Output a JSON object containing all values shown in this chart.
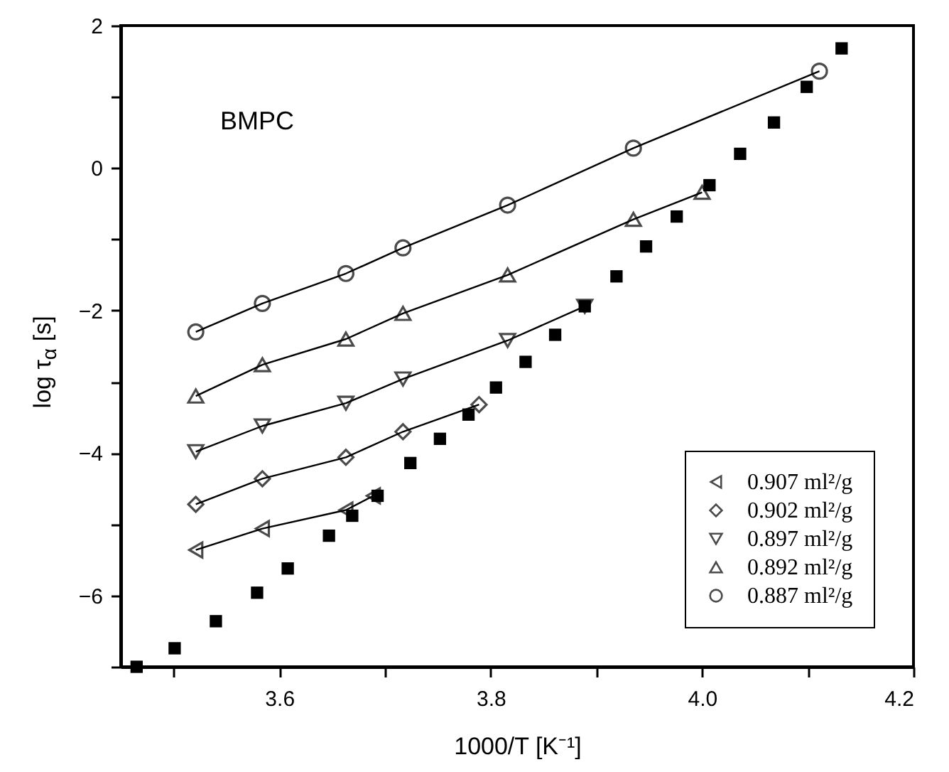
{
  "chart_data": {
    "type": "line",
    "xlabel": "1000/T  [K⁻¹]",
    "ylabel": "log τ$_{α}$  [s]",
    "annotations": [
      "BMPC"
    ],
    "xlim": [
      3.45,
      4.2
    ],
    "xticks": [
      {
        "value": 3.5,
        "label": null
      },
      3.6,
      {
        "value": 3.7,
        "label": null
      },
      3.8,
      {
        "value": 3.9,
        "label": null
      },
      {
        "value": 4,
        "label": "4.0"
      },
      {
        "value": 4.1,
        "label": null
      },
      4.2
    ],
    "ylim": [
      -7,
      2
    ],
    "yticks": [
      {
        "value": -7,
        "label": null
      },
      -6,
      {
        "value": -5,
        "label": null
      },
      -4,
      {
        "value": -3,
        "label": null
      },
      -2,
      {
        "value": -1,
        "label": null
      },
      0,
      {
        "value": 1,
        "label": null
      },
      2
    ],
    "grid": false,
    "legend": "bottom right",
    "series": [
      {
        "name": "0.907 ml²/g",
        "type": "line",
        "marker": "triangle-left",
        "color": "#000000",
        "x": [
          3.521,
          3.584,
          3.663,
          3.689
        ],
        "values": [
          -5.36,
          -5.06,
          -4.8,
          -4.6
        ]
      },
      {
        "name": "0.902 ml²/g",
        "type": "line",
        "marker": "diamond",
        "color": "#000000",
        "x": [
          3.521,
          3.584,
          3.663,
          3.717,
          3.789
        ],
        "values": [
          -4.72,
          -4.36,
          -4.06,
          -3.7,
          -3.32
        ]
      },
      {
        "name": "0.897 ml²/g",
        "type": "line",
        "marker": "triangle-down",
        "color": "#000000",
        "x": [
          3.521,
          3.584,
          3.663,
          3.717,
          3.816,
          3.889
        ],
        "values": [
          -3.98,
          -3.62,
          -3.3,
          -2.96,
          -2.42,
          -1.94
        ]
      },
      {
        "name": "0.892 ml²/g",
        "type": "line",
        "marker": "triangle",
        "color": "#000000",
        "x": [
          3.521,
          3.584,
          3.663,
          3.717,
          3.816,
          3.935,
          4.0
        ],
        "values": [
          -3.2,
          -2.76,
          -2.4,
          -2.04,
          -1.5,
          -0.72,
          -0.34
        ]
      },
      {
        "name": "0.887 ml²/g",
        "type": "line",
        "marker": "circle",
        "color": "#000000",
        "x": [
          3.521,
          3.584,
          3.663,
          3.717,
          3.816,
          3.935,
          4.111
        ],
        "values": [
          -2.3,
          -1.9,
          -1.48,
          -1.12,
          -0.52,
          0.28,
          1.36
        ]
      },
      {
        "type": "scatter",
        "marker": "square",
        "color": "#000000",
        "x": [
          3.465,
          3.501,
          3.54,
          3.579,
          3.608,
          3.647,
          3.669,
          3.693,
          3.724,
          3.752,
          3.779,
          3.805,
          3.833,
          3.861,
          3.889,
          3.919,
          3.947,
          3.976,
          4.007,
          4.036,
          4.068,
          4.099,
          4.132
        ],
        "values": [
          -7.0,
          -6.74,
          -6.36,
          -5.96,
          -5.62,
          -5.16,
          -4.88,
          -4.6,
          -4.14,
          -3.8,
          -3.46,
          -3.08,
          -2.72,
          -2.34,
          -1.94,
          -1.52,
          -1.1,
          -0.68,
          -0.24,
          0.2,
          0.64,
          1.14,
          1.68
        ]
      }
    ]
  }
}
